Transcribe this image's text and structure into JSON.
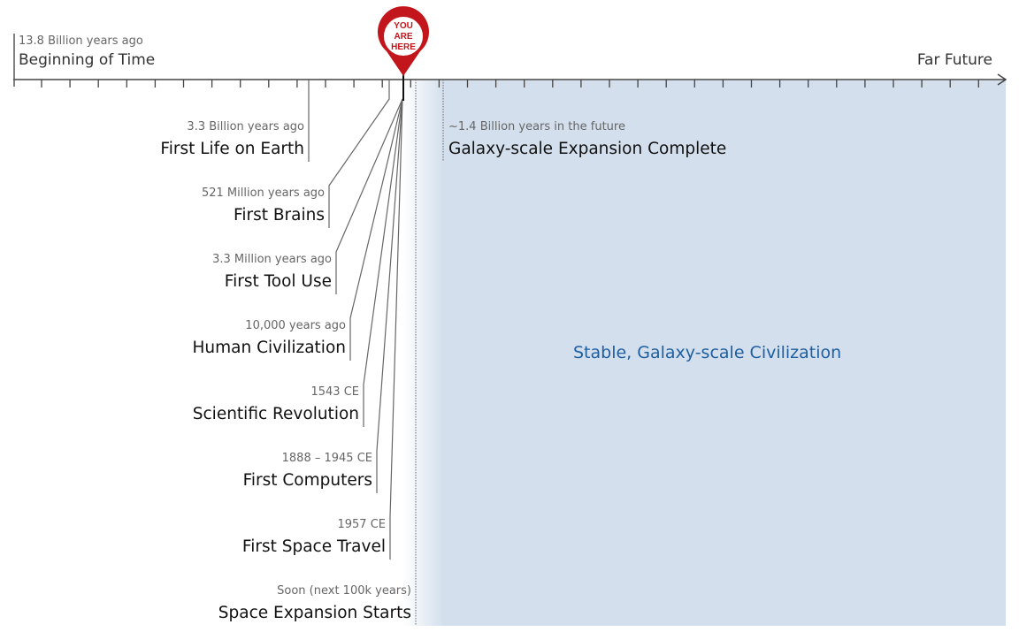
{
  "axis": {
    "start": {
      "date": "13.8 Billion years ago",
      "title": "Beginning of Time"
    },
    "end": {
      "title": "Far Future"
    }
  },
  "marker": {
    "text_lines": [
      "YOU",
      "ARE",
      "HERE"
    ],
    "color": "#c3161c"
  },
  "events": [
    {
      "date": "3.3 Billion years ago",
      "title": "First Life on Earth"
    },
    {
      "date": "521 Million years ago",
      "title": "First Brains"
    },
    {
      "date": "3.3 Million years ago",
      "title": "First Tool Use"
    },
    {
      "date": "10,000 years ago",
      "title": "Human Civilization"
    },
    {
      "date": "1543 CE",
      "title": "Scientific Revolution"
    },
    {
      "date": "1888 – 1945 CE",
      "title": "First Computers"
    },
    {
      "date": "1957 CE",
      "title": "First Space Travel"
    },
    {
      "date": "Soon (next 100k years)",
      "title": "Space Expansion Starts"
    }
  ],
  "future_event": {
    "date": "~1.4 Billion years in the future",
    "title": "Galaxy-scale Expansion Complete"
  },
  "future_region": {
    "label": "Stable, Galaxy-scale Civilization",
    "color": "#d3dfed"
  }
}
